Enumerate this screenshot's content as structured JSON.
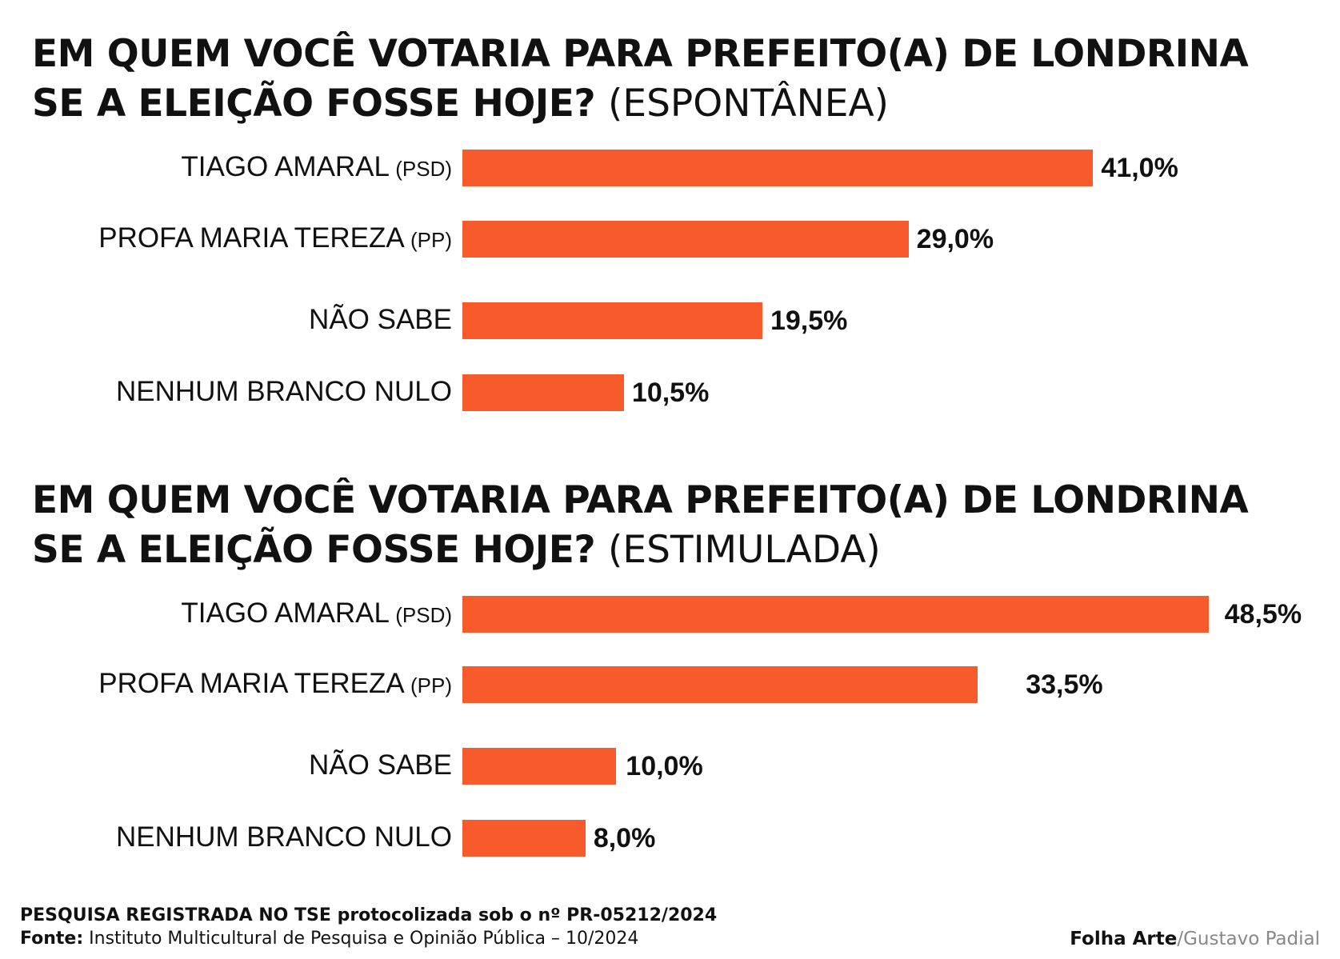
{
  "colors": {
    "bar": "#f75a2b",
    "text": "#111111",
    "muted": "#888888"
  },
  "chart_data": [
    {
      "type": "bar",
      "orientation": "horizontal",
      "title_line1": "EM QUEM VOCÊ VOTARIA PARA PREFEITO(A) DE LONDRINA",
      "title_line2": "SE A ELEIÇÃO FOSSE HOJE?",
      "title_suffix": "(ESPONTÂNEA)",
      "categories": [
        {
          "name": "TIAGO AMARAL",
          "party": "(PSD)"
        },
        {
          "name": "PROFA MARIA TEREZA",
          "party": "(PP)"
        },
        {
          "name": "NÃO SABE",
          "party": ""
        },
        {
          "name": "NENHUM BRANCO NULO",
          "party": ""
        }
      ],
      "values": [
        41.0,
        29.0,
        19.5,
        10.5
      ],
      "value_labels": [
        "41,0%",
        "29,0%",
        "19,5%",
        "10,5%"
      ],
      "unit": "%"
    },
    {
      "type": "bar",
      "orientation": "horizontal",
      "title_line1": "EM QUEM VOCÊ VOTARIA PARA PREFEITO(A) DE LONDRINA",
      "title_line2": "SE A ELEIÇÃO FOSSE HOJE?",
      "title_suffix": "(ESTIMULADA)",
      "categories": [
        {
          "name": "TIAGO AMARAL",
          "party": "(PSD)"
        },
        {
          "name": "PROFA MARIA TEREZA",
          "party": "(PP)"
        },
        {
          "name": "NÃO SABE",
          "party": ""
        },
        {
          "name": "NENHUM BRANCO NULO",
          "party": ""
        }
      ],
      "values": [
        48.5,
        33.5,
        10.0,
        8.0
      ],
      "value_labels": [
        "48,5%",
        "33,5%",
        "10,0%",
        "8,0%"
      ],
      "unit": "%"
    }
  ],
  "footer": {
    "line1": "PESQUISA REGISTRADA NO TSE protocolizada sob o nº PR-05212/2024",
    "line2_label": "Fonte:",
    "line2_text": "Instituto Multicultural de Pesquisa e Opinião Pública – 10/2024"
  },
  "credit": {
    "brand": "Folha Arte",
    "separator": "/",
    "author": "Gustavo Padial"
  }
}
